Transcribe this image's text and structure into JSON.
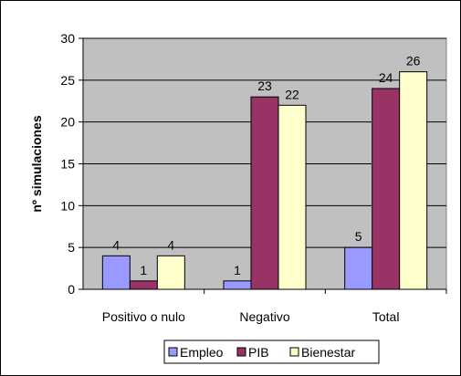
{
  "chart_data": {
    "type": "bar",
    "title": "",
    "xlabel": "",
    "ylabel": "nº simulaciones",
    "ylim": [
      0,
      30
    ],
    "yticks": [
      0,
      5,
      10,
      15,
      20,
      25,
      30
    ],
    "grid": true,
    "legend_position": "bottom",
    "categories": [
      "Positivo o nulo",
      "Negativo",
      "Total"
    ],
    "series": [
      {
        "name": "Empleo",
        "color": "#9999ff",
        "values": [
          4,
          1,
          5
        ]
      },
      {
        "name": "PIB",
        "color": "#993366",
        "values": [
          1,
          23,
          24
        ]
      },
      {
        "name": "Bienestar",
        "color": "#ffffcc",
        "values": [
          4,
          22,
          26
        ]
      }
    ],
    "plot_background": "#c0c0c0"
  }
}
